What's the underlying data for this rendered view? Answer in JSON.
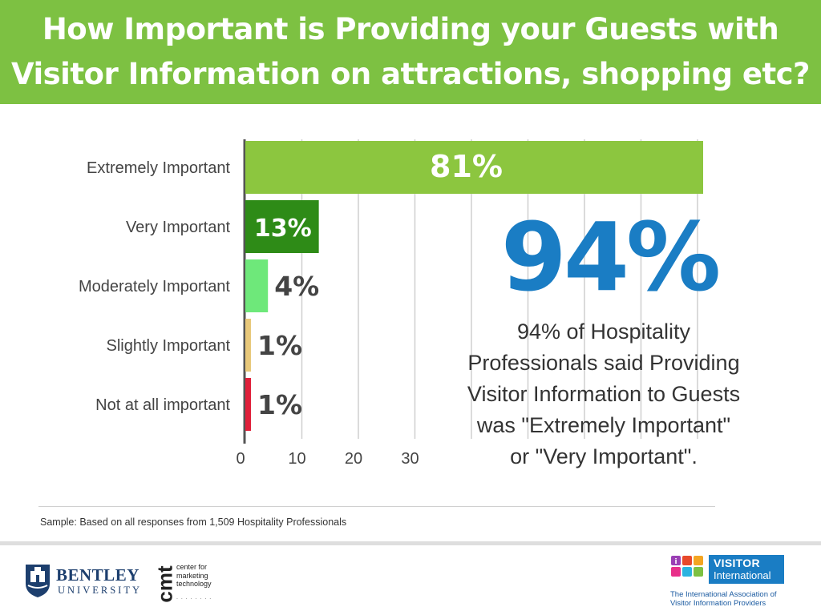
{
  "header": {
    "title_line1": "How Important is Providing your Guests with",
    "title_line2": "Visitor Information on attractions, shopping etc?"
  },
  "colors": {
    "header_bg": "#7dc142",
    "highlight_blue": "#1a7dc4",
    "bar_extremely": "#8cc63f",
    "bar_very": "#2e8b17",
    "bar_moderately": "#6ee87a",
    "bar_slightly": "#e8c87a",
    "bar_not_at_all": "#e0203a"
  },
  "chart_data": {
    "type": "bar",
    "orientation": "horizontal",
    "categories": [
      "Extremely Important",
      "Very Important",
      "Moderately Important",
      "Slightly Important",
      "Not at all important"
    ],
    "values": [
      81,
      13,
      4,
      1,
      1
    ],
    "value_labels": [
      "81%",
      "13%",
      "4%",
      "1%",
      "1%"
    ],
    "colors": [
      "#8cc63f",
      "#2e8b17",
      "#6ee87a",
      "#e8c87a",
      "#e0203a"
    ],
    "x_ticks": [
      "0",
      "10",
      "20",
      "30"
    ],
    "xlim": [
      0,
      81
    ],
    "grid": true
  },
  "highlight": {
    "big_number": "94%",
    "line1": "94% of Hospitality",
    "line2": "Professionals said Providing",
    "line3": "Visitor Information to Guests",
    "line4": "was \"Extremely Important\"",
    "line5": "or \"Very Important\"."
  },
  "sample_note": "Sample:  Based on all responses from 1,509 Hospitality Professionals",
  "logos": {
    "bentley_name": "BENTLEY",
    "bentley_sub": "UNIVERSITY",
    "cmt_mark": "cmt",
    "cmt_text": [
      "center for",
      "marketing",
      "technology"
    ],
    "vi_title": "VISITOR",
    "vi_sub": "International",
    "vi_tagline": [
      "The International Association of",
      "Visitor Information Providers"
    ]
  }
}
